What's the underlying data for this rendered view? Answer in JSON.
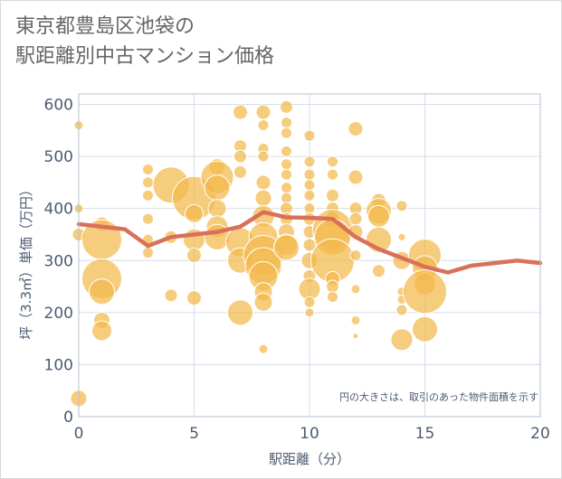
{
  "title_lines": [
    "東京都豊島区池袋の",
    "駅距離別中古マンション価格"
  ],
  "chart_data": {
    "type": "scatter",
    "xlabel": "駅距離（分）",
    "ylabel": "坪（3.3㎡）単価（万円）",
    "xlim": [
      0,
      20
    ],
    "ylim": [
      0,
      620
    ],
    "xticks": [
      0,
      5,
      10,
      15,
      20
    ],
    "yticks": [
      0,
      100,
      200,
      300,
      400,
      500,
      600
    ],
    "grid": true,
    "annotation": "円の大きさは、取引のあった物件面積を示す",
    "colors": {
      "bubble": "#f2b84b",
      "line": "#d9705a",
      "axis_text": "#4d5b73"
    },
    "bubbles": [
      {
        "x": 0,
        "y": 560,
        "r": 5
      },
      {
        "x": 0,
        "y": 400,
        "r": 5
      },
      {
        "x": 0,
        "y": 350,
        "r": 7
      },
      {
        "x": 0,
        "y": 35,
        "r": 9
      },
      {
        "x": 1,
        "y": 370,
        "r": 8
      },
      {
        "x": 1,
        "y": 340,
        "r": 22
      },
      {
        "x": 1,
        "y": 265,
        "r": 22
      },
      {
        "x": 1,
        "y": 240,
        "r": 14
      },
      {
        "x": 1,
        "y": 185,
        "r": 9
      },
      {
        "x": 1,
        "y": 165,
        "r": 11
      },
      {
        "x": 3,
        "y": 475,
        "r": 6
      },
      {
        "x": 3,
        "y": 450,
        "r": 6
      },
      {
        "x": 3,
        "y": 425,
        "r": 6
      },
      {
        "x": 3,
        "y": 380,
        "r": 6
      },
      {
        "x": 3,
        "y": 340,
        "r": 6
      },
      {
        "x": 3,
        "y": 315,
        "r": 6
      },
      {
        "x": 4,
        "y": 445,
        "r": 20
      },
      {
        "x": 4,
        "y": 345,
        "r": 7
      },
      {
        "x": 4,
        "y": 233,
        "r": 7
      },
      {
        "x": 5,
        "y": 420,
        "r": 24
      },
      {
        "x": 5,
        "y": 390,
        "r": 10
      },
      {
        "x": 5,
        "y": 340,
        "r": 12
      },
      {
        "x": 5,
        "y": 310,
        "r": 8
      },
      {
        "x": 5,
        "y": 228,
        "r": 8
      },
      {
        "x": 6,
        "y": 480,
        "r": 9
      },
      {
        "x": 6,
        "y": 460,
        "r": 18
      },
      {
        "x": 6,
        "y": 440,
        "r": 14
      },
      {
        "x": 6,
        "y": 400,
        "r": 10
      },
      {
        "x": 6,
        "y": 365,
        "r": 12
      },
      {
        "x": 6,
        "y": 345,
        "r": 14
      },
      {
        "x": 7,
        "y": 585,
        "r": 8
      },
      {
        "x": 7,
        "y": 520,
        "r": 7
      },
      {
        "x": 7,
        "y": 500,
        "r": 7
      },
      {
        "x": 7,
        "y": 470,
        "r": 7
      },
      {
        "x": 7,
        "y": 335,
        "r": 16
      },
      {
        "x": 7,
        "y": 300,
        "r": 14
      },
      {
        "x": 7,
        "y": 200,
        "r": 14
      },
      {
        "x": 8,
        "y": 585,
        "r": 8
      },
      {
        "x": 8,
        "y": 560,
        "r": 6
      },
      {
        "x": 8,
        "y": 515,
        "r": 6
      },
      {
        "x": 8,
        "y": 500,
        "r": 6
      },
      {
        "x": 8,
        "y": 450,
        "r": 8
      },
      {
        "x": 8,
        "y": 420,
        "r": 9
      },
      {
        "x": 8,
        "y": 385,
        "r": 12
      },
      {
        "x": 8,
        "y": 345,
        "r": 16
      },
      {
        "x": 8,
        "y": 310,
        "r": 22
      },
      {
        "x": 8,
        "y": 290,
        "r": 20
      },
      {
        "x": 8,
        "y": 270,
        "r": 16
      },
      {
        "x": 8,
        "y": 240,
        "r": 10
      },
      {
        "x": 8,
        "y": 220,
        "r": 10
      },
      {
        "x": 8,
        "y": 130,
        "r": 5
      },
      {
        "x": 9,
        "y": 595,
        "r": 7
      },
      {
        "x": 9,
        "y": 565,
        "r": 6
      },
      {
        "x": 9,
        "y": 545,
        "r": 6
      },
      {
        "x": 9,
        "y": 510,
        "r": 6
      },
      {
        "x": 9,
        "y": 485,
        "r": 6
      },
      {
        "x": 9,
        "y": 465,
        "r": 6
      },
      {
        "x": 9,
        "y": 440,
        "r": 6
      },
      {
        "x": 9,
        "y": 420,
        "r": 6
      },
      {
        "x": 9,
        "y": 400,
        "r": 7
      },
      {
        "x": 9,
        "y": 380,
        "r": 7
      },
      {
        "x": 9,
        "y": 355,
        "r": 9
      },
      {
        "x": 9,
        "y": 330,
        "r": 12
      },
      {
        "x": 9,
        "y": 325,
        "r": 14
      },
      {
        "x": 10,
        "y": 540,
        "r": 6
      },
      {
        "x": 10,
        "y": 490,
        "r": 6
      },
      {
        "x": 10,
        "y": 465,
        "r": 6
      },
      {
        "x": 10,
        "y": 445,
        "r": 6
      },
      {
        "x": 10,
        "y": 425,
        "r": 6
      },
      {
        "x": 10,
        "y": 400,
        "r": 6
      },
      {
        "x": 10,
        "y": 380,
        "r": 7
      },
      {
        "x": 10,
        "y": 355,
        "r": 7
      },
      {
        "x": 10,
        "y": 330,
        "r": 7
      },
      {
        "x": 10,
        "y": 300,
        "r": 9
      },
      {
        "x": 10,
        "y": 270,
        "r": 7
      },
      {
        "x": 10,
        "y": 245,
        "r": 12
      },
      {
        "x": 10,
        "y": 220,
        "r": 6
      },
      {
        "x": 10,
        "y": 200,
        "r": 5
      },
      {
        "x": 11,
        "y": 490,
        "r": 6
      },
      {
        "x": 11,
        "y": 465,
        "r": 6
      },
      {
        "x": 11,
        "y": 425,
        "r": 7
      },
      {
        "x": 11,
        "y": 400,
        "r": 7
      },
      {
        "x": 11,
        "y": 380,
        "r": 8
      },
      {
        "x": 11,
        "y": 360,
        "r": 22
      },
      {
        "x": 11,
        "y": 345,
        "r": 20
      },
      {
        "x": 11,
        "y": 300,
        "r": 24
      },
      {
        "x": 11,
        "y": 265,
        "r": 8
      },
      {
        "x": 11,
        "y": 250,
        "r": 7
      },
      {
        "x": 11,
        "y": 230,
        "r": 6
      },
      {
        "x": 12,
        "y": 553,
        "r": 8
      },
      {
        "x": 12,
        "y": 460,
        "r": 8
      },
      {
        "x": 12,
        "y": 400,
        "r": 7
      },
      {
        "x": 12,
        "y": 380,
        "r": 7
      },
      {
        "x": 12,
        "y": 355,
        "r": 8
      },
      {
        "x": 12,
        "y": 310,
        "r": 6
      },
      {
        "x": 12,
        "y": 245,
        "r": 5
      },
      {
        "x": 12,
        "y": 185,
        "r": 5
      },
      {
        "x": 12,
        "y": 155,
        "r": 3
      },
      {
        "x": 13,
        "y": 415,
        "r": 8
      },
      {
        "x": 13,
        "y": 395,
        "r": 14
      },
      {
        "x": 13,
        "y": 385,
        "r": 12
      },
      {
        "x": 13,
        "y": 340,
        "r": 14
      },
      {
        "x": 13,
        "y": 280,
        "r": 7
      },
      {
        "x": 14,
        "y": 405,
        "r": 6
      },
      {
        "x": 14,
        "y": 345,
        "r": 4
      },
      {
        "x": 14,
        "y": 300,
        "r": 10
      },
      {
        "x": 14,
        "y": 240,
        "r": 5
      },
      {
        "x": 14,
        "y": 225,
        "r": 5
      },
      {
        "x": 14,
        "y": 205,
        "r": 6
      },
      {
        "x": 14,
        "y": 148,
        "r": 12
      },
      {
        "x": 15,
        "y": 310,
        "r": 18
      },
      {
        "x": 15,
        "y": 285,
        "r": 14
      },
      {
        "x": 15,
        "y": 255,
        "r": 12
      },
      {
        "x": 15,
        "y": 240,
        "r": 24
      },
      {
        "x": 15,
        "y": 168,
        "r": 14
      }
    ],
    "trend_line": {
      "x": [
        0,
        1,
        2,
        3,
        4,
        5,
        6,
        7,
        8,
        9,
        10,
        11,
        12,
        13,
        14,
        15,
        16,
        17,
        18,
        19,
        20
      ],
      "y": [
        370,
        365,
        360,
        328,
        345,
        350,
        355,
        365,
        393,
        383,
        382,
        380,
        345,
        322,
        305,
        288,
        277,
        290,
        295,
        300,
        295
      ]
    }
  }
}
